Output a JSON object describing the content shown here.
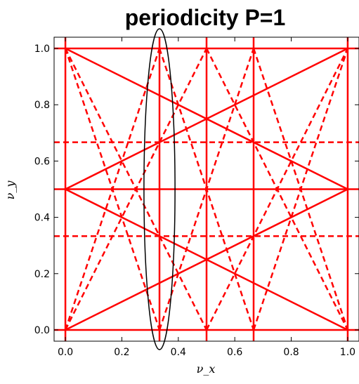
{
  "chart_data": {
    "type": "line",
    "title": "periodicity P=1",
    "xlabel": "ν_x",
    "ylabel": "ν_y",
    "xlim": [
      -0.04,
      1.04
    ],
    "ylim": [
      -0.04,
      1.04
    ],
    "x_ticks": [
      0.0,
      0.2,
      0.4,
      0.6,
      0.8,
      1.0
    ],
    "y_ticks": [
      0.0,
      0.2,
      0.4,
      0.6,
      0.8,
      1.0
    ],
    "x_tick_labels": [
      "0.0",
      "0.2",
      "0.4",
      "0.6",
      "0.8",
      "1.0"
    ],
    "y_tick_labels": [
      "0.0",
      "0.2",
      "0.4",
      "0.6",
      "0.8",
      "1.0"
    ],
    "grid": false,
    "line_color": "#ff0000",
    "solid_lines": [
      [
        [
          -0.04,
          0.0
        ],
        [
          1.04,
          0.0
        ]
      ],
      [
        [
          -0.04,
          0.5
        ],
        [
          1.04,
          0.5
        ]
      ],
      [
        [
          -0.04,
          1.0
        ],
        [
          1.04,
          1.0
        ]
      ],
      [
        [
          0.0,
          -0.04
        ],
        [
          0.0,
          1.04
        ]
      ],
      [
        [
          0.3333,
          -0.04
        ],
        [
          0.3333,
          1.04
        ]
      ],
      [
        [
          0.5,
          -0.04
        ],
        [
          0.5,
          1.04
        ]
      ],
      [
        [
          0.6667,
          -0.04
        ],
        [
          0.6667,
          1.04
        ]
      ],
      [
        [
          1.0,
          -0.04
        ],
        [
          1.0,
          1.04
        ]
      ],
      [
        [
          0.0,
          0.0
        ],
        [
          1.0,
          0.5
        ]
      ],
      [
        [
          0.0,
          0.5
        ],
        [
          1.0,
          1.0
        ]
      ],
      [
        [
          0.0,
          0.5
        ],
        [
          1.0,
          0.0
        ]
      ],
      [
        [
          0.0,
          1.0
        ],
        [
          1.0,
          0.5
        ]
      ]
    ],
    "dashed_lines": [
      [
        [
          -0.04,
          0.3333
        ],
        [
          1.04,
          0.3333
        ]
      ],
      [
        [
          -0.04,
          0.6667
        ],
        [
          1.04,
          0.6667
        ]
      ],
      [
        [
          0.0,
          0.0
        ],
        [
          0.3333,
          1.0
        ]
      ],
      [
        [
          0.3333,
          0.0
        ],
        [
          0.6667,
          1.0
        ]
      ],
      [
        [
          0.6667,
          0.0
        ],
        [
          1.0,
          1.0
        ]
      ],
      [
        [
          0.0,
          1.0
        ],
        [
          0.3333,
          0.0
        ]
      ],
      [
        [
          0.3333,
          1.0
        ],
        [
          0.6667,
          0.0
        ]
      ],
      [
        [
          0.6667,
          1.0
        ],
        [
          1.0,
          0.0
        ]
      ],
      [
        [
          0.0,
          0.0
        ],
        [
          0.5,
          1.0
        ]
      ],
      [
        [
          0.5,
          0.0
        ],
        [
          1.0,
          1.0
        ]
      ],
      [
        [
          0.0,
          1.0
        ],
        [
          0.5,
          0.0
        ]
      ],
      [
        [
          0.5,
          1.0
        ],
        [
          1.0,
          0.0
        ]
      ]
    ],
    "ellipse": {
      "center": [
        0.3333,
        0.5
      ],
      "x_radius": 0.055,
      "y_radius": 0.57,
      "color": "#000000"
    }
  }
}
